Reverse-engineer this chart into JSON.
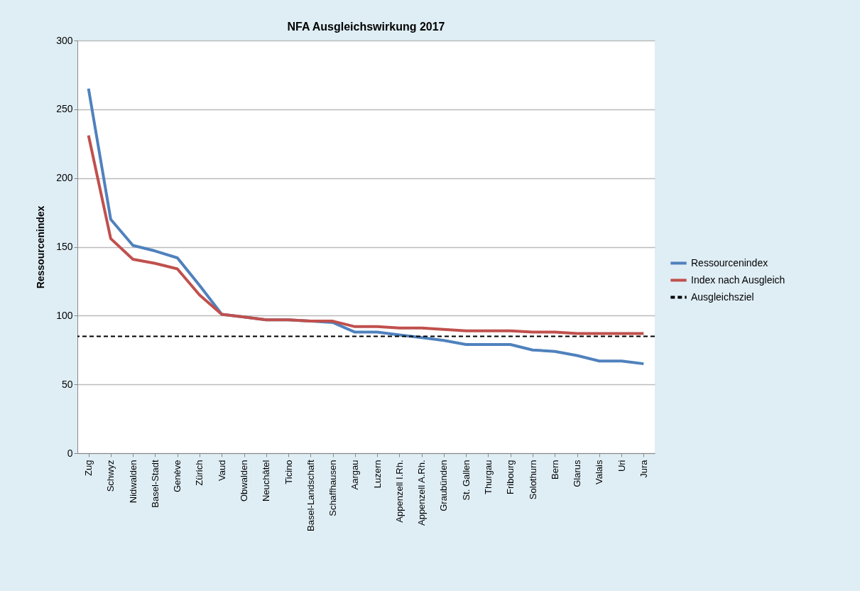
{
  "chart_data": {
    "type": "line",
    "title": "NFA Ausgleichswirkung 2017",
    "ylabel": "Ressourcenindex",
    "categories": [
      "Zug",
      "Schwyz",
      "Nidwalden",
      "Basel-Stadt",
      "Genève",
      "Zürich",
      "Vaud",
      "Obwalden",
      "Neuchâtel",
      "Ticino",
      "Basel-Landschaft",
      "Schaffhausen",
      "Aargau",
      "Luzern",
      "Appenzell I.Rh.",
      "Appenzell A.Rh.",
      "Graubünden",
      "St. Gallen",
      "Thurgau",
      "Fribourg",
      "Solothurn",
      "Bern",
      "Glarus",
      "Valais",
      "Uri",
      "Jura"
    ],
    "series": [
      {
        "name": "Ressourcenindex",
        "color": "#4f81bd",
        "values": [
          265,
          170,
          151,
          147,
          142,
          122,
          101,
          99,
          97,
          97,
          96,
          95,
          88,
          88,
          86,
          84,
          82,
          79,
          79,
          79,
          75,
          74,
          71,
          67,
          67,
          65
        ]
      },
      {
        "name": "Index nach Ausgleich",
        "color": "#c0504d",
        "values": [
          231,
          156,
          141,
          138,
          134,
          115,
          101,
          99,
          97,
          97,
          96,
          96,
          92,
          92,
          91,
          91,
          90,
          89,
          89,
          89,
          88,
          88,
          87,
          87,
          87,
          87
        ]
      }
    ],
    "ref_lines": [
      {
        "axis": "y",
        "value": 85,
        "label": "Ausgleichsziel",
        "color": "#000000",
        "line_style": "dashed"
      }
    ],
    "ylim": [
      0,
      300
    ],
    "yticks": [
      0,
      50,
      100,
      150,
      200,
      250,
      300
    ],
    "grid": "y",
    "legend": "right",
    "marker": "none",
    "line_style": "solid"
  }
}
